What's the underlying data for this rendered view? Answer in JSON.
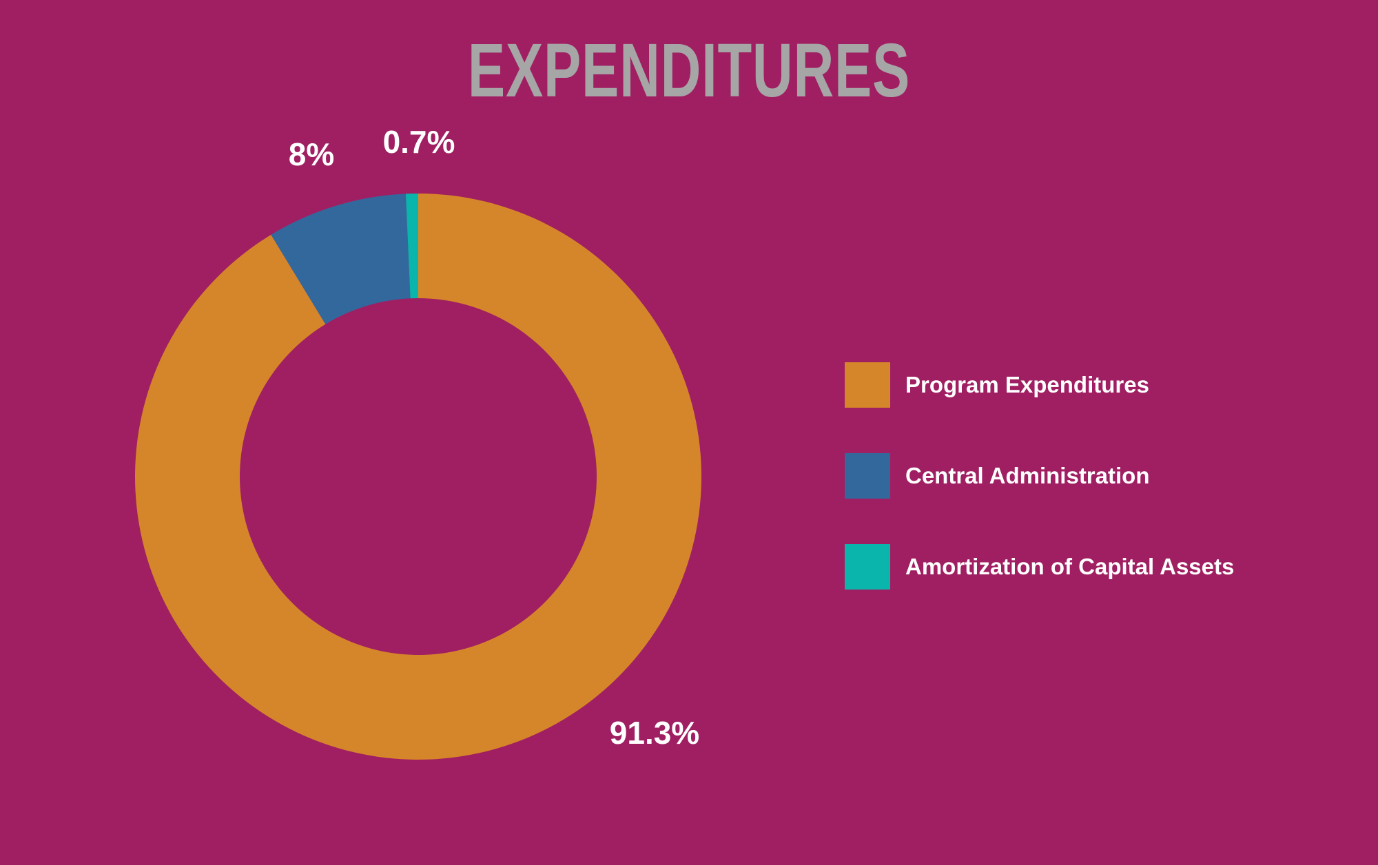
{
  "chart_data": {
    "type": "pie",
    "title": "EXPENDITURES",
    "donut": true,
    "categories": [
      "Program Expenditures",
      "Central Administration",
      "Amortization of Capital Assets"
    ],
    "values": [
      91.3,
      8,
      0.7
    ],
    "labels": [
      "91.3%",
      "8%",
      "0.7%"
    ],
    "colors": [
      "#d6862a",
      "#33689c",
      "#0ab5ab"
    ],
    "legend_position": "right",
    "legend": [
      {
        "label": "Program Expenditures",
        "color": "#d6862a"
      },
      {
        "label": "Central Administration",
        "color": "#33689c"
      },
      {
        "label": "Amortization of Capital Assets",
        "color": "#0ab5ab"
      }
    ]
  },
  "colors": {
    "background": "#a01f62",
    "title": "#a6a6a6",
    "label": "#ffffff"
  }
}
